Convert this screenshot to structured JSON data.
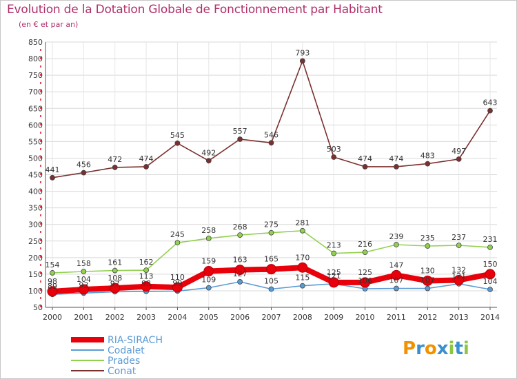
{
  "header": {
    "title": "Evolution de la Dotation Globale de Fonctionnement par Habitant",
    "subtitle": "(en € et par an)"
  },
  "logo": {
    "text": "Proxiti",
    "letters": [
      "P",
      "r",
      "o",
      "x",
      "i",
      "t",
      "i"
    ],
    "colors": [
      "#f39200",
      "#3a8fd0",
      "#f39200",
      "#3a8fd0",
      "#8dc63f",
      "#3a8fd0",
      "#8dc63f"
    ]
  },
  "chart_data": {
    "type": "line",
    "title": "Evolution de la Dotation Globale de Fonctionnement par Habitant",
    "subtitle": "(en € et par an)",
    "xlabel": "",
    "ylabel": "",
    "ylim": [
      50,
      850
    ],
    "yticks": [
      50,
      100,
      150,
      200,
      250,
      300,
      350,
      400,
      450,
      500,
      550,
      600,
      650,
      700,
      750,
      800,
      850
    ],
    "grid": true,
    "legend_position": "bottom-left",
    "x": [
      "2000",
      "2001",
      "2002",
      "2003",
      "2004",
      "2005",
      "2006",
      "2007",
      "2008",
      "2009",
      "2010",
      "2011",
      "2012",
      "2013",
      "2014"
    ],
    "series": [
      {
        "name": "RIA-SIRACH",
        "color": "#e8000b",
        "emphasis": true,
        "values": [
          98,
          104,
          108,
          113,
          110,
          159,
          163,
          165,
          170,
          125,
          125,
          147,
          130,
          132,
          150
        ]
      },
      {
        "name": "Codalet",
        "color": "#5b9bd5",
        "emphasis": false,
        "values": [
          89,
          93,
          97,
          98,
          99,
          109,
          127,
          105,
          115,
          121,
          106,
          107,
          107,
          121,
          104
        ]
      },
      {
        "name": "Prades",
        "color": "#92d050",
        "emphasis": false,
        "values": [
          154,
          158,
          161,
          162,
          245,
          258,
          268,
          275,
          281,
          213,
          216,
          239,
          235,
          237,
          231
        ]
      },
      {
        "name": "Conat",
        "color": "#7b2f2f",
        "emphasis": false,
        "values": [
          441,
          456,
          472,
          474,
          545,
          492,
          557,
          546,
          793,
          503,
          474,
          474,
          483,
          497,
          643
        ]
      }
    ]
  }
}
